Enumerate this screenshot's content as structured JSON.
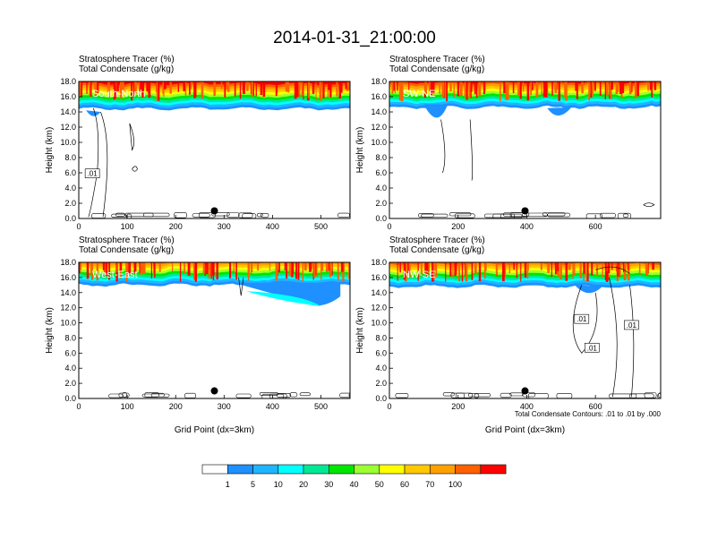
{
  "title": "2014-01-31_21:00:00",
  "colorbar": {
    "colors": [
      "#ffffff",
      "#1e90ff",
      "#1fb4ff",
      "#00ffff",
      "#00e896",
      "#00e600",
      "#9bff32",
      "#ffff00",
      "#ffc800",
      "#ffa000",
      "#ff6000",
      "#ff0000"
    ],
    "labels": [
      "1",
      "5",
      "10",
      "20",
      "30",
      "40",
      "50",
      "60",
      "70",
      "100"
    ]
  },
  "chart_data": [
    {
      "type": "contour-cross-section",
      "subtitle_lines": [
        "Stratosphere Tracer   (%)",
        "Total Condensate   (g/kg)"
      ],
      "section_label": "South-North",
      "ylabel": "Height (km)",
      "xlabel": "",
      "xlim": [
        0,
        560
      ],
      "ylim": [
        0,
        18
      ],
      "xticks": [
        0,
        100,
        200,
        300,
        400,
        500
      ],
      "yticks": [
        "0.0",
        "2.0",
        "4.0",
        "6.0",
        "8.0",
        "10.0",
        "12.0",
        "14.0",
        "16.0",
        "18.0"
      ],
      "tracer_base_km": 14.4,
      "marker_x": 280,
      "contour_labels": [
        ".01"
      ],
      "note": ""
    },
    {
      "type": "contour-cross-section",
      "subtitle_lines": [
        "Stratosphere Tracer   (%)",
        "Total Condensate   (g/kg)"
      ],
      "section_label": "SW-NE",
      "ylabel": "Height (km)",
      "xlabel": "",
      "xlim": [
        0,
        790
      ],
      "ylim": [
        0,
        18
      ],
      "xticks": [
        0,
        200,
        400,
        600
      ],
      "yticks": [
        "0.0",
        "2.0",
        "4.0",
        "6.0",
        "8.0",
        "10.0",
        "12.0",
        "14.0",
        "16.0",
        "18.0"
      ],
      "tracer_base_km": 14.6,
      "marker_x": 395,
      "contour_labels": [],
      "note": ""
    },
    {
      "type": "contour-cross-section",
      "subtitle_lines": [
        "Stratosphere Tracer   (%)",
        "Total Condensate   (g/kg)"
      ],
      "section_label": "West-East",
      "ylabel": "Height (km)",
      "xlabel": "Grid Point (dx=3km)",
      "xlim": [
        0,
        560
      ],
      "ylim": [
        0,
        18
      ],
      "xticks": [
        0,
        100,
        200,
        300,
        400,
        500
      ],
      "yticks": [
        "0.0",
        "2.0",
        "4.0",
        "6.0",
        "8.0",
        "10.0",
        "12.0",
        "14.0",
        "16.0",
        "18.0"
      ],
      "tracer_base_km": 15.0,
      "marker_x": 280,
      "contour_labels": [],
      "note": ""
    },
    {
      "type": "contour-cross-section",
      "subtitle_lines": [
        "Stratosphere Tracer   (%)",
        "Total Condensate   (g/kg)"
      ],
      "section_label": "NW-SE",
      "ylabel": "Height (km)",
      "xlabel": "Grid Point (dx=3km)",
      "xlim": [
        0,
        790
      ],
      "ylim": [
        0,
        18
      ],
      "xticks": [
        0,
        200,
        400,
        600
      ],
      "yticks": [
        "0.0",
        "2.0",
        "4.0",
        "6.0",
        "8.0",
        "10.0",
        "12.0",
        "14.0",
        "16.0",
        "18.0"
      ],
      "tracer_base_km": 14.8,
      "marker_x": 395,
      "contour_labels": [
        ".01",
        ".01",
        ".01"
      ],
      "note": "Total Condensate Contours: .01 to .01 by .000"
    }
  ]
}
